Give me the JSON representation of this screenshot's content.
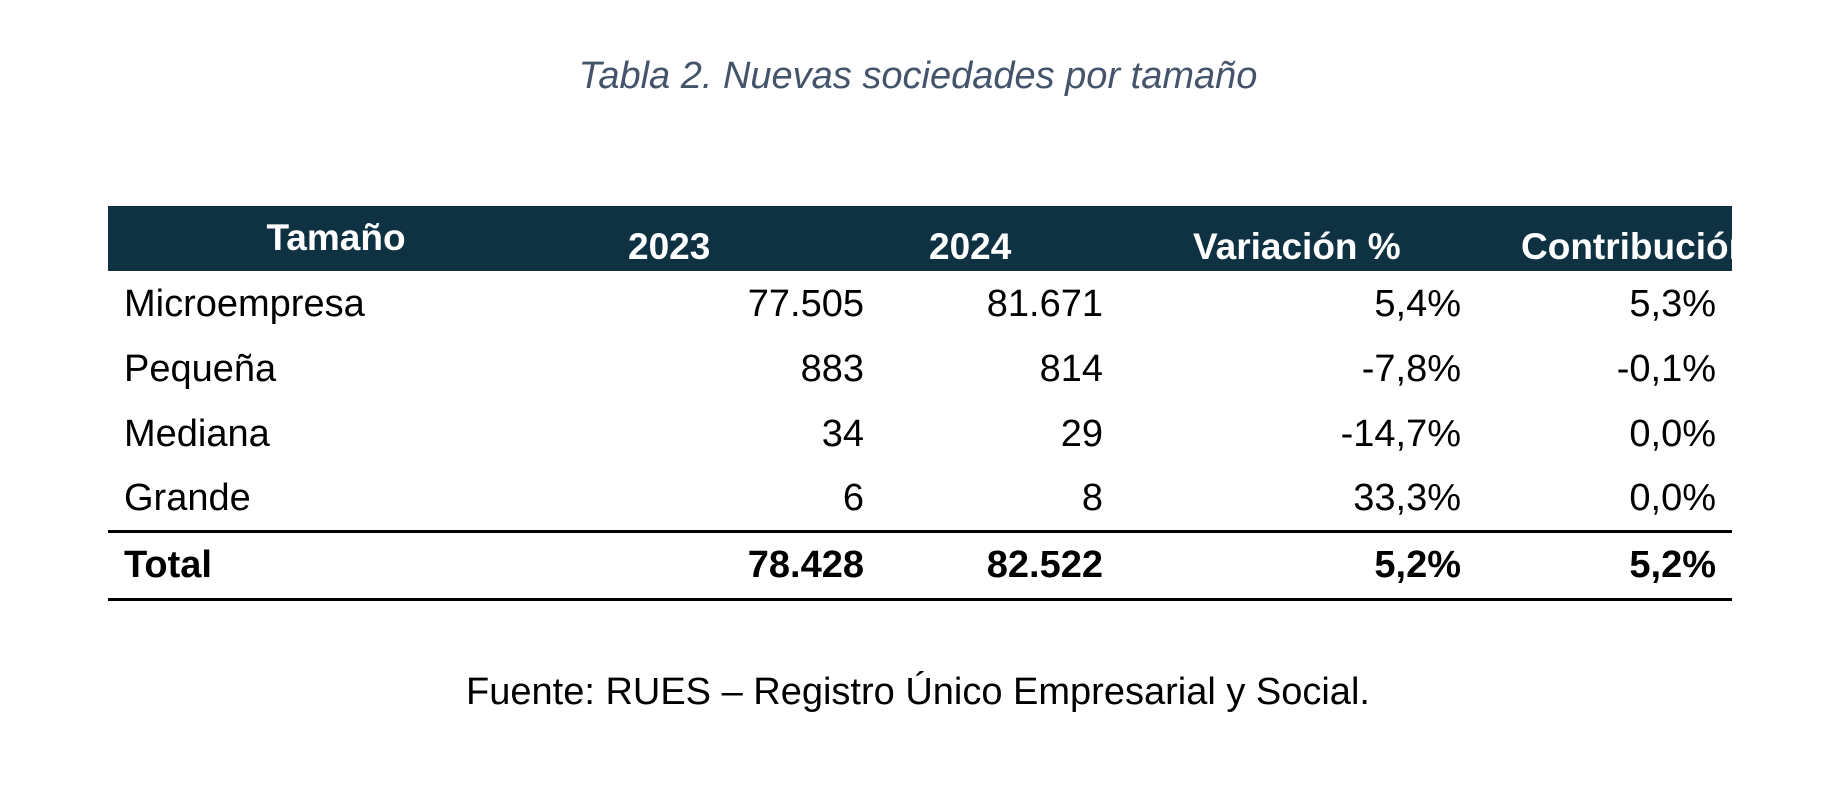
{
  "caption": "Tabla 2. Nuevas sociedades por tamaño",
  "table": {
    "headers": [
      "Tamaño",
      "2023",
      "2024",
      "Variación %",
      "Contribución"
    ],
    "rows": [
      [
        "Microempresa",
        "77.505",
        "81.671",
        "5,4%",
        "5,3%"
      ],
      [
        "Pequeña",
        "883",
        "814",
        "-7,8%",
        "-0,1%"
      ],
      [
        "Mediana",
        "34",
        "29",
        "-14,7%",
        "0,0%"
      ],
      [
        "Grande",
        "6",
        "8",
        "33,3%",
        "0,0%"
      ]
    ],
    "total": [
      "Total",
      "78.428",
      "82.522",
      "5,2%",
      "5,2%"
    ]
  },
  "source": "Fuente: RUES – Registro Único Empresarial y Social.",
  "colors": {
    "header_background": "#0f3242",
    "header_text": "#ffffff",
    "caption_text": "#44546a"
  }
}
